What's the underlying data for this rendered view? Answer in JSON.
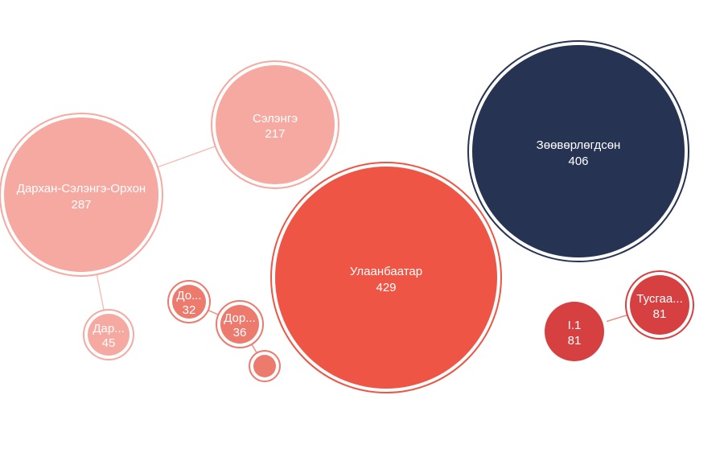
{
  "chart_data": {
    "type": "bubble",
    "colors": {
      "light_pink": "#f5a9a0",
      "mid_pink": "#ec7a6d",
      "red": "#ee5544",
      "dark_red": "#d64040",
      "navy": "#273352",
      "link": "#f3c2bb",
      "link_red": "#ee8f86"
    },
    "bubbles": [
      {
        "id": "ulaanbaatar",
        "label": "Улаанбаатар",
        "value": "429",
        "color": "red",
        "ring": true
      },
      {
        "id": "zoovorlogdson",
        "label": "Зөөвөрлөгдсөн",
        "value": "406",
        "color": "navy",
        "ring": true
      },
      {
        "id": "darkhan-selenge-orkhon",
        "label": "Дархан-Сэлэнгэ-Орхон",
        "value": "287",
        "color": "light_pink",
        "ring": true
      },
      {
        "id": "selenge",
        "label": "Сэлэнгэ",
        "value": "217",
        "color": "light_pink",
        "ring": true
      },
      {
        "id": "darkhan",
        "label": "Дар...",
        "value": "45",
        "color": "light_pink",
        "ring": true
      },
      {
        "id": "dornogovi",
        "label": "До...",
        "value": "32",
        "color": "mid_pink",
        "ring": true
      },
      {
        "id": "dornod",
        "label": "Дор...",
        "value": "36",
        "color": "mid_pink",
        "ring": true
      },
      {
        "id": "small",
        "label": "",
        "value": "",
        "color": "mid_pink",
        "ring": true
      },
      {
        "id": "i1",
        "label": "I.1",
        "value": "81",
        "color": "dark_red",
        "ring": false
      },
      {
        "id": "tusgaarlagdsan",
        "label": "Тусгаа...",
        "value": "81",
        "color": "dark_red",
        "ring": true
      }
    ],
    "links": [
      {
        "from": "darkhan-selenge-orkhon",
        "to": "selenge"
      },
      {
        "from": "darkhan-selenge-orkhon",
        "to": "darkhan"
      },
      {
        "from": "dornogovi",
        "to": "dornod"
      },
      {
        "from": "dornod",
        "to": "small"
      },
      {
        "from": "i1",
        "to": "tusgaarlagdsan"
      }
    ]
  }
}
